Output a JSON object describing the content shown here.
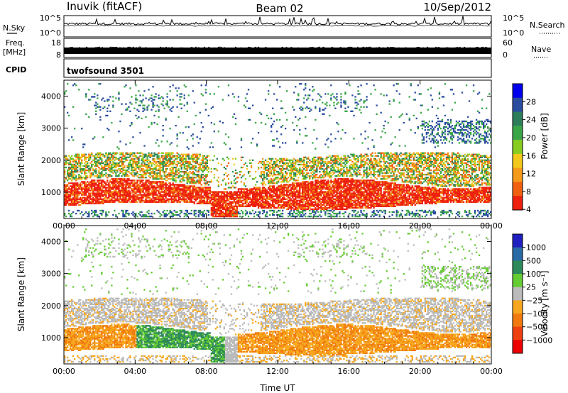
{
  "header": {
    "station": "Inuvik (fitACF)",
    "beam": "Beam 02",
    "date": "10/Sep/2012"
  },
  "sky_panel": {
    "left_label": "N.Sky",
    "left_ticks": [
      "10^5",
      "10^0"
    ],
    "right_label": "N.Search",
    "right_ticks": [
      "10^5",
      "10^0"
    ]
  },
  "freq_panel": {
    "left_label": "Freq.",
    "left_unit": "[MHz]",
    "left_ticks": [
      "18",
      "8"
    ],
    "right_label": "Nave",
    "right_ticks": [
      "60",
      "0"
    ]
  },
  "cpid_panel": {
    "label": "CPID",
    "program": "twofsound 3501"
  },
  "colors": {
    "power": [
      "#0000ee",
      "#2a4da0",
      "#2e7d5b",
      "#3aa648",
      "#88cc22",
      "#f2c81a",
      "#f59a1a",
      "#f06010",
      "#ee2010"
    ],
    "velocity": [
      "#2020c0",
      "#2a6aa6",
      "#2e8a5a",
      "#66cc33",
      "#bbbbbb",
      "#f7a71d",
      "#f07a10",
      "#ee4010",
      "#ee0000"
    ]
  },
  "chart_data": [
    {
      "type": "heatmap",
      "title": "",
      "xlabel": "",
      "ylabel": "Slant Range [km]",
      "xlim": [
        "00:00",
        "24:00"
      ],
      "ylim": [
        180,
        4500
      ],
      "x_ticks": [
        "00:00",
        "04:00",
        "08:00",
        "12:00",
        "16:00",
        "20:00",
        "00:00"
      ],
      "y_ticks": [
        1000,
        2000,
        3000,
        4000
      ],
      "colorbar": {
        "label": "Power [dB]",
        "ticks": [
          "28",
          "24",
          "20",
          "16",
          "12",
          "8",
          "4"
        ],
        "range": [
          0,
          30
        ]
      }
    },
    {
      "type": "heatmap",
      "title": "",
      "xlabel": "Time UT",
      "ylabel": "Slant Range [km]",
      "xlim": [
        "00:00",
        "24:00"
      ],
      "ylim": [
        180,
        4500
      ],
      "x_ticks": [
        "00:00",
        "04:00",
        "08:00",
        "12:00",
        "16:00",
        "20:00",
        "00:00"
      ],
      "y_ticks": [
        1000,
        2000,
        3000,
        4000
      ],
      "colorbar": {
        "label": "Velocity [m s⁻¹]",
        "ticks": [
          "1000",
          "500",
          "100",
          "25",
          "−25",
          "−100",
          "−500",
          "−1000"
        ],
        "range": [
          -1000,
          1000
        ]
      }
    }
  ]
}
